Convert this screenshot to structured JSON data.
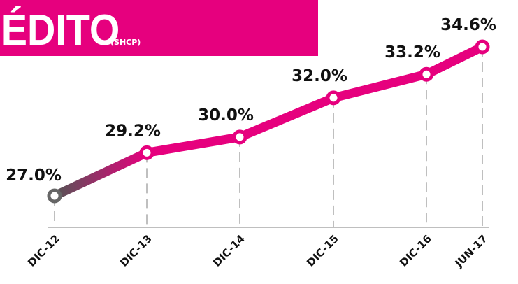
{
  "chart_data": {
    "type": "line",
    "title": "ÉDITO",
    "subtitle": "(SHCP)",
    "categories": [
      "DIC-12",
      "DIC-13",
      "DIC-14",
      "DIC-15",
      "DIC-16",
      "JUN-17"
    ],
    "series": [
      {
        "name": null,
        "color": "#e6007e",
        "values": [
          27.0,
          29.2,
          30.0,
          32.0,
          33.2,
          34.6
        ],
        "value_labels": [
          "27.0%",
          "29.2%",
          "30.0%",
          "32.0%",
          "33.2%",
          "34.6%"
        ]
      }
    ]
  }
}
